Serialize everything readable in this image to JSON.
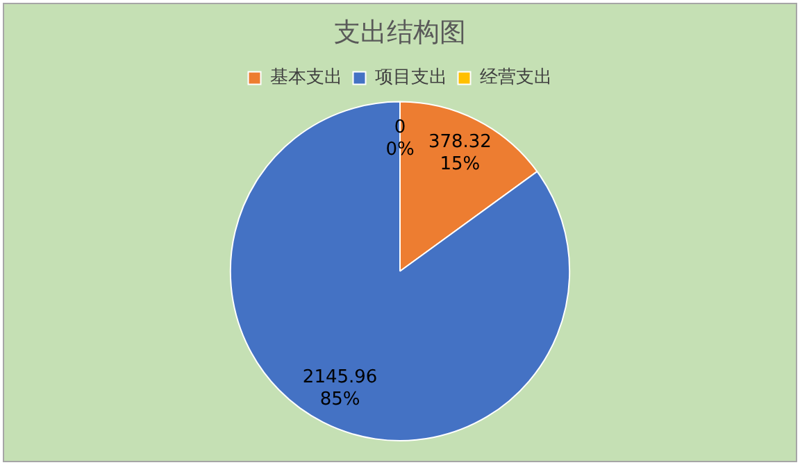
{
  "chart_data": {
    "type": "pie",
    "title": "支出结构图",
    "categories": [
      "基本支出",
      "项目支出",
      "经营支出"
    ],
    "values": [
      378.32,
      2145.96,
      0
    ],
    "colors": [
      "#ed7d31",
      "#4472c4",
      "#ffc000"
    ],
    "value_labels": [
      "378.32\n15%",
      "2145.96\n85%",
      "0\n0%"
    ],
    "legend": "top"
  }
}
